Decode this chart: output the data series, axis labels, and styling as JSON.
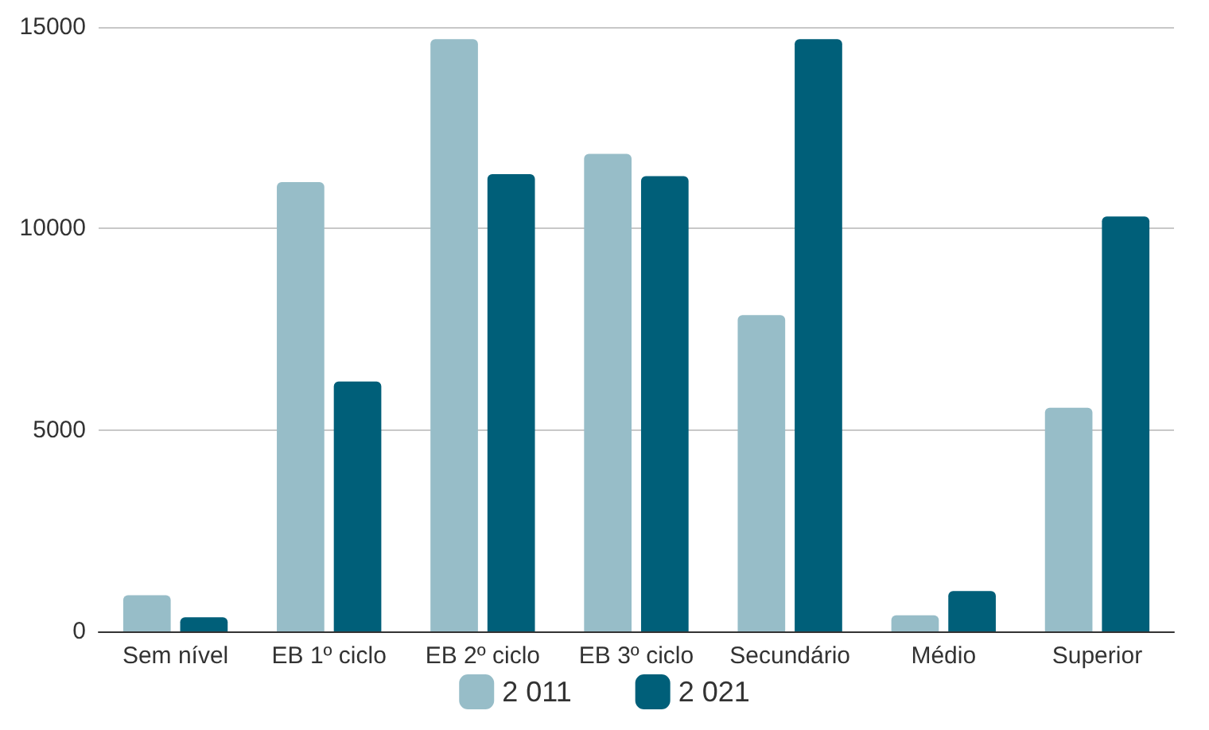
{
  "chart_data": {
    "type": "bar",
    "categories": [
      "Sem nível",
      "EB 1º ciclo",
      "EB 2º ciclo",
      "EB 3º ciclo",
      "Secundário",
      "Médio",
      "Superior"
    ],
    "series": [
      {
        "name": "2 011",
        "color": "#97bdc8",
        "values": [
          900,
          11150,
          14700,
          11850,
          7850,
          400,
          5550
        ]
      },
      {
        "name": "2 021",
        "color": "#005f79",
        "values": [
          350,
          6200,
          11350,
          11300,
          14700,
          1000,
          10300
        ]
      }
    ],
    "ylim": [
      0,
      15000
    ],
    "yticks": [
      0,
      5000,
      10000,
      15000
    ],
    "grid": "y",
    "legend": "bottom"
  }
}
